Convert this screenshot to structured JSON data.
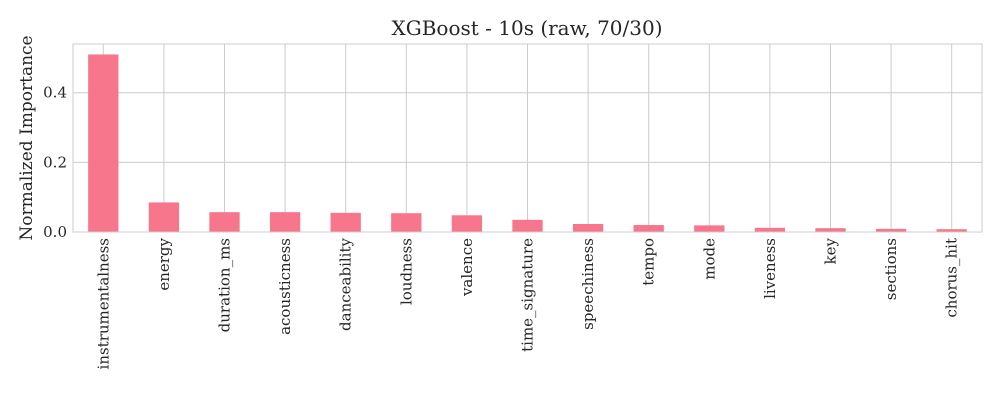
{
  "chart_data": {
    "type": "bar",
    "title": "XGBoost - 10s (raw, 70/30)",
    "xlabel": "",
    "ylabel": "Normalized Importance",
    "categories": [
      "instrumentalness",
      "energy",
      "duration_ms",
      "acousticness",
      "danceability",
      "loudness",
      "valence",
      "time_signature",
      "speechiness",
      "tempo",
      "mode",
      "liveness",
      "key",
      "sections",
      "chorus_hit"
    ],
    "values": [
      0.51,
      0.085,
      0.057,
      0.057,
      0.055,
      0.054,
      0.048,
      0.035,
      0.023,
      0.02,
      0.019,
      0.012,
      0.011,
      0.009,
      0.008
    ],
    "ylim": [
      0,
      0.54
    ],
    "yticks": [
      0.0,
      0.2,
      0.4
    ],
    "ytick_labels": [
      "0.0",
      "0.2",
      "0.4"
    ],
    "grid": true,
    "bar_color": "#f7768c",
    "grid_color": "#cccccc",
    "spine_color": "#cccccc"
  }
}
